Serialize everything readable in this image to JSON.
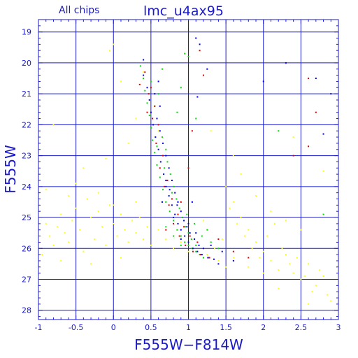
{
  "chart_data": {
    "type": "scatter",
    "title": "lmc_u4ax95",
    "subtitle": "All chips",
    "xlabel": "F555W−F814W",
    "ylabel": "F555W",
    "xlim": [
      -1,
      3
    ],
    "ylim": [
      28.3,
      18.6
    ],
    "y_inverted": true,
    "grid": true,
    "x_ticks": [
      -1,
      -0.5,
      0,
      0.5,
      1,
      1.5,
      2,
      2.5,
      3
    ],
    "x_tick_labels": [
      "-1",
      "-0.5",
      "0",
      "0.5",
      "1",
      "1.5",
      "2",
      "2.5",
      "3"
    ],
    "y_ticks": [
      19,
      20,
      21,
      22,
      23,
      24,
      25,
      26,
      27,
      28
    ],
    "y_tick_labels": [
      "19",
      "20",
      "21",
      "22",
      "23",
      "24",
      "25",
      "26",
      "27",
      "28"
    ],
    "series": [
      {
        "color": "#ffff00",
        "points": [
          [
            -0.9,
            25.2
          ],
          [
            -0.85,
            25.6
          ],
          [
            -0.8,
            25.9
          ],
          [
            -0.75,
            25.3
          ],
          [
            -0.7,
            24.9
          ],
          [
            -0.65,
            25.5
          ],
          [
            -0.6,
            25.8
          ],
          [
            -0.55,
            25.1
          ],
          [
            -0.5,
            24.7
          ],
          [
            -0.45,
            25.4
          ],
          [
            -0.4,
            26.1
          ],
          [
            -0.35,
            24.4
          ],
          [
            -0.3,
            25.0
          ],
          [
            -0.25,
            25.7
          ],
          [
            -0.2,
            24.8
          ],
          [
            -0.15,
            25.3
          ],
          [
            -0.1,
            25.9
          ],
          [
            -0.05,
            24.6
          ],
          [
            0.0,
            25.2
          ],
          [
            0.05,
            25.6
          ],
          [
            0.1,
            24.9
          ],
          [
            0.15,
            25.4
          ],
          [
            0.2,
            25.8
          ],
          [
            0.25,
            25.1
          ],
          [
            0.3,
            25.5
          ],
          [
            0.35,
            25.0
          ],
          [
            0.4,
            25.7
          ],
          [
            0.45,
            25.3
          ],
          [
            -0.95,
            26.2
          ],
          [
            -0.7,
            26.4
          ],
          [
            -0.3,
            26.5
          ],
          [
            0.1,
            26.3
          ],
          [
            -0.6,
            24.3
          ],
          [
            -0.2,
            24.2
          ],
          [
            0.3,
            24.5
          ],
          [
            -0.4,
            23.4
          ],
          [
            -0.1,
            23.1
          ],
          [
            0.2,
            22.6
          ],
          [
            0.6,
            22.2
          ],
          [
            -0.8,
            22.0
          ],
          [
            0.1,
            20.6
          ],
          [
            0.0,
            19.4
          ],
          [
            -0.05,
            19.6
          ],
          [
            0.3,
            21.8
          ],
          [
            0.4,
            20.3
          ],
          [
            -0.9,
            24.1
          ],
          [
            -0.5,
            23.9
          ],
          [
            0.0,
            24.6
          ],
          [
            1.5,
            24.0
          ],
          [
            1.6,
            24.5
          ],
          [
            1.7,
            25.0
          ],
          [
            1.8,
            25.4
          ],
          [
            1.9,
            25.8
          ],
          [
            2.0,
            26.1
          ],
          [
            2.1,
            26.4
          ],
          [
            2.2,
            26.7
          ],
          [
            2.3,
            26.2
          ],
          [
            2.4,
            26.8
          ],
          [
            2.5,
            27.0
          ],
          [
            2.6,
            26.5
          ],
          [
            2.7,
            27.2
          ],
          [
            2.8,
            26.9
          ],
          [
            2.85,
            27.5
          ],
          [
            2.9,
            27.7
          ],
          [
            1.55,
            24.7
          ],
          [
            1.65,
            25.2
          ],
          [
            1.75,
            25.6
          ],
          [
            1.85,
            26.0
          ],
          [
            1.95,
            26.3
          ],
          [
            2.05,
            25.6
          ],
          [
            2.15,
            25.2
          ],
          [
            2.25,
            26.0
          ],
          [
            2.35,
            26.5
          ],
          [
            2.45,
            26.3
          ],
          [
            2.55,
            26.9
          ],
          [
            2.65,
            27.4
          ],
          [
            2.75,
            26.7
          ],
          [
            1.45,
            25.7
          ],
          [
            1.35,
            26.0
          ],
          [
            1.25,
            26.2
          ],
          [
            1.6,
            26.3
          ],
          [
            1.8,
            26.6
          ],
          [
            2.0,
            26.8
          ],
          [
            1.7,
            23.6
          ],
          [
            1.9,
            24.3
          ],
          [
            2.1,
            24.8
          ],
          [
            2.3,
            25.1
          ],
          [
            2.5,
            25.4
          ],
          [
            1.3,
            22.2
          ],
          [
            1.6,
            23.0
          ],
          [
            2.8,
            23.5
          ],
          [
            2.4,
            22.4
          ],
          [
            1.1,
            25.5
          ],
          [
            1.2,
            25.1
          ],
          [
            1.0,
            26.1
          ],
          [
            0.9,
            25.8
          ],
          [
            0.7,
            25.7
          ],
          [
            0.8,
            26.0
          ],
          [
            0.6,
            25.4
          ],
          [
            0.5,
            25.9
          ],
          [
            1.4,
            26.4
          ],
          [
            1.5,
            26.6
          ],
          [
            2.2,
            27.3
          ],
          [
            2.6,
            27.8
          ]
        ]
      },
      {
        "color": "#00dd00",
        "points": [
          [
            0.36,
            20.1
          ],
          [
            0.4,
            20.5
          ],
          [
            0.42,
            20.9
          ],
          [
            0.45,
            21.3
          ],
          [
            0.48,
            21.7
          ],
          [
            0.5,
            22.1
          ],
          [
            0.52,
            22.5
          ],
          [
            0.55,
            22.9
          ],
          [
            0.58,
            23.3
          ],
          [
            0.62,
            23.7
          ],
          [
            0.66,
            24.1
          ],
          [
            0.7,
            24.5
          ],
          [
            0.75,
            24.8
          ],
          [
            0.8,
            25.1
          ],
          [
            0.85,
            25.4
          ],
          [
            0.9,
            25.6
          ],
          [
            0.95,
            25.8
          ],
          [
            1.0,
            25.9
          ],
          [
            1.05,
            26.0
          ],
          [
            1.1,
            26.1
          ],
          [
            1.15,
            26.2
          ],
          [
            1.2,
            26.3
          ],
          [
            0.6,
            22.0
          ],
          [
            0.65,
            22.4
          ],
          [
            0.7,
            22.8
          ],
          [
            0.72,
            23.2
          ],
          [
            0.76,
            23.6
          ],
          [
            0.8,
            24.0
          ],
          [
            0.84,
            24.4
          ],
          [
            0.88,
            24.7
          ],
          [
            0.92,
            25.0
          ],
          [
            0.96,
            25.3
          ],
          [
            1.0,
            25.5
          ],
          [
            1.04,
            25.7
          ],
          [
            1.1,
            25.9
          ],
          [
            0.55,
            21.4
          ],
          [
            0.6,
            21.0
          ],
          [
            0.5,
            20.6
          ],
          [
            0.65,
            20.2
          ],
          [
            0.85,
            21.6
          ],
          [
            0.9,
            20.8
          ],
          [
            1.0,
            19.8
          ],
          [
            0.7,
            25.3
          ],
          [
            0.8,
            25.6
          ],
          [
            0.9,
            25.9
          ],
          [
            1.3,
            25.8
          ],
          [
            1.4,
            26.0
          ],
          [
            1.25,
            25.4
          ],
          [
            0.58,
            22.7
          ],
          [
            0.68,
            23.4
          ],
          [
            0.78,
            24.2
          ],
          [
            0.98,
            24.9
          ],
          [
            1.08,
            25.2
          ],
          [
            1.18,
            25.6
          ],
          [
            2.8,
            24.9
          ],
          [
            2.2,
            22.2
          ],
          [
            1.1,
            21.8
          ],
          [
            0.95,
            19.7
          ]
        ]
      },
      {
        "color": "#0000ee",
        "points": [
          [
            0.4,
            20.4
          ],
          [
            0.45,
            20.8
          ],
          [
            0.48,
            21.2
          ],
          [
            0.5,
            21.6
          ],
          [
            0.53,
            22.0
          ],
          [
            0.56,
            22.4
          ],
          [
            0.6,
            22.8
          ],
          [
            0.63,
            23.2
          ],
          [
            0.67,
            23.6
          ],
          [
            0.7,
            24.0
          ],
          [
            0.74,
            24.3
          ],
          [
            0.78,
            24.6
          ],
          [
            0.82,
            24.9
          ],
          [
            0.86,
            25.2
          ],
          [
            0.9,
            25.4
          ],
          [
            0.95,
            25.6
          ],
          [
            1.0,
            25.8
          ],
          [
            1.06,
            26.0
          ],
          [
            1.12,
            26.1
          ],
          [
            1.18,
            26.2
          ],
          [
            1.26,
            26.3
          ],
          [
            1.34,
            26.35
          ],
          [
            0.62,
            22.2
          ],
          [
            0.66,
            22.6
          ],
          [
            0.7,
            23.0
          ],
          [
            0.74,
            23.4
          ],
          [
            0.78,
            23.8
          ],
          [
            0.82,
            24.2
          ],
          [
            0.86,
            24.5
          ],
          [
            0.9,
            24.8
          ],
          [
            0.94,
            25.1
          ],
          [
            0.98,
            25.3
          ],
          [
            1.02,
            25.5
          ],
          [
            1.08,
            25.7
          ],
          [
            1.14,
            25.9
          ],
          [
            1.2,
            26.0
          ],
          [
            0.58,
            21.8
          ],
          [
            0.62,
            21.4
          ],
          [
            0.55,
            21.0
          ],
          [
            0.6,
            20.6
          ],
          [
            0.7,
            23.8
          ],
          [
            0.75,
            24.1
          ],
          [
            0.85,
            24.6
          ],
          [
            1.0,
            25.2
          ],
          [
            1.1,
            25.5
          ],
          [
            1.3,
            25.9
          ],
          [
            1.45,
            26.1
          ],
          [
            1.6,
            26.4
          ],
          [
            1.1,
            19.2
          ],
          [
            1.15,
            19.4
          ],
          [
            1.25,
            20.2
          ],
          [
            1.12,
            21.1
          ],
          [
            0.4,
            19.9
          ],
          [
            2.0,
            20.6
          ],
          [
            2.3,
            20.0
          ],
          [
            2.8,
            22.3
          ],
          [
            2.9,
            21.0
          ],
          [
            2.7,
            20.5
          ],
          [
            0.65,
            24.5
          ],
          [
            0.8,
            25.0
          ],
          [
            1.05,
            24.5
          ],
          [
            0.9,
            25.7
          ],
          [
            1.4,
            26.5
          ]
        ]
      },
      {
        "color": "#dd0000",
        "points": [
          [
            0.42,
            20.3
          ],
          [
            0.47,
            21.0
          ],
          [
            0.52,
            21.8
          ],
          [
            0.57,
            22.6
          ],
          [
            0.62,
            23.4
          ],
          [
            0.68,
            24.0
          ],
          [
            0.74,
            24.6
          ],
          [
            0.8,
            25.2
          ],
          [
            0.88,
            25.6
          ],
          [
            0.96,
            25.9
          ],
          [
            1.06,
            26.1
          ],
          [
            1.16,
            26.2
          ],
          [
            1.28,
            26.3
          ],
          [
            0.6,
            22.0
          ],
          [
            0.66,
            23.0
          ],
          [
            0.72,
            23.8
          ],
          [
            0.78,
            24.4
          ],
          [
            0.86,
            24.9
          ],
          [
            0.94,
            25.3
          ],
          [
            1.02,
            25.6
          ],
          [
            1.12,
            25.8
          ],
          [
            0.55,
            21.4
          ],
          [
            0.5,
            20.8
          ],
          [
            0.45,
            21.6
          ],
          [
            1.2,
            20.4
          ],
          [
            1.15,
            19.6
          ],
          [
            1.05,
            22.2
          ],
          [
            1.0,
            23.4
          ],
          [
            2.6,
            20.5
          ],
          [
            2.7,
            21.6
          ],
          [
            2.6,
            22.7
          ],
          [
            2.4,
            23.0
          ],
          [
            1.4,
            25.7
          ],
          [
            1.6,
            26.1
          ],
          [
            1.8,
            26.3
          ],
          [
            0.7,
            25.4
          ],
          [
            0.9,
            24.5
          ],
          [
            0.35,
            20.7
          ]
        ]
      }
    ]
  }
}
